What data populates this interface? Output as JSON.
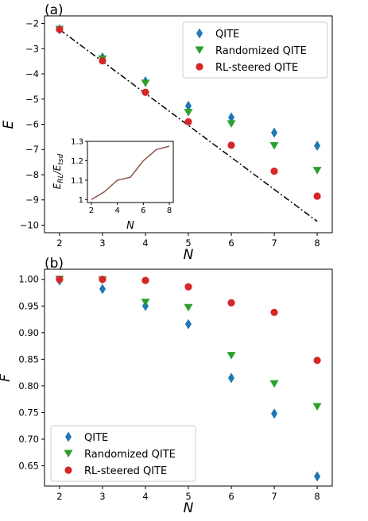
{
  "chart_data": [
    {
      "panel_label": "(a)",
      "type": "scatter",
      "xlabel": "N",
      "ylabel": "E",
      "xlim": [
        1.65,
        8.35
      ],
      "ylim": [
        -10.3,
        -1.7
      ],
      "x_ticks": [
        2,
        3,
        4,
        5,
        6,
        7,
        8
      ],
      "y_ticks": [
        -10,
        -9,
        -8,
        -7,
        -6,
        -5,
        -4,
        -3,
        -2
      ],
      "legend_position": "upper right",
      "series": [
        {
          "name": "QITE",
          "marker": "diamond",
          "color": "#1f77b4",
          "x": [
            2,
            3,
            4,
            5,
            6,
            7,
            8
          ],
          "y": [
            -2.23,
            -3.35,
            -4.3,
            -5.27,
            -5.73,
            -6.33,
            -6.85
          ]
        },
        {
          "name": "Randomized QITE",
          "marker": "triangle-down",
          "color": "#2ca02c",
          "x": [
            2,
            3,
            4,
            5,
            6,
            7,
            8
          ],
          "y": [
            -2.24,
            -3.41,
            -4.37,
            -5.53,
            -5.98,
            -6.85,
            -7.83
          ]
        },
        {
          "name": "RL-steered QITE",
          "marker": "circle",
          "color": "#d62728",
          "x": [
            2,
            3,
            4,
            5,
            6,
            7,
            8
          ],
          "y": [
            -2.24,
            -3.48,
            -4.73,
            -5.9,
            -6.83,
            -7.86,
            -8.85
          ]
        }
      ],
      "reference_line": {
        "style": "dash-dot",
        "color": "#000000",
        "x": [
          2,
          8
        ],
        "y": [
          -2.24,
          -9.85
        ]
      },
      "inset": {
        "type": "line",
        "xlabel": "N",
        "ylabel": "E_RL/E_tsd",
        "xlim": [
          1.7,
          8.3
        ],
        "ylim": [
          0.985,
          1.3
        ],
        "x_ticks": [
          2,
          4,
          6,
          8
        ],
        "y_ticks": [
          1.0,
          1.1,
          1.2,
          1.3
        ],
        "x_tick_labels": [
          "2",
          "4",
          "6",
          "8"
        ],
        "y_tick_labels": [
          "1",
          "1.1",
          "1.2",
          "1.3"
        ],
        "color": "#8c564b",
        "x": [
          2,
          3,
          4,
          5,
          6,
          7,
          8
        ],
        "y": [
          1.0,
          1.04,
          1.1,
          1.115,
          1.2,
          1.258,
          1.275
        ]
      }
    },
    {
      "panel_label": "(b)",
      "type": "scatter",
      "xlabel": "N",
      "ylabel": "F",
      "xlim": [
        1.65,
        8.35
      ],
      "ylim": [
        0.612,
        1.019
      ],
      "x_ticks": [
        2,
        3,
        4,
        5,
        6,
        7,
        8
      ],
      "y_ticks": [
        0.65,
        0.7,
        0.75,
        0.8,
        0.85,
        0.9,
        0.95,
        1.0
      ],
      "y_tick_labels": [
        "0.65",
        "0.70",
        "0.75",
        "0.80",
        "0.85",
        "0.90",
        "0.95",
        "1.00"
      ],
      "legend_position": "lower left",
      "series": [
        {
          "name": "QITE",
          "marker": "diamond",
          "color": "#1f77b4",
          "x": [
            2,
            3,
            4,
            5,
            6,
            7,
            8
          ],
          "y": [
            0.998,
            0.982,
            0.95,
            0.916,
            0.815,
            0.748,
            0.63
          ]
        },
        {
          "name": "Randomized QITE",
          "marker": "triangle-down",
          "color": "#2ca02c",
          "x": [
            2,
            3,
            4,
            5,
            6,
            7,
            8
          ],
          "y": [
            1.0,
            0.999,
            0.957,
            0.947,
            0.857,
            0.804,
            0.761
          ]
        },
        {
          "name": "RL-steered QITE",
          "marker": "circle",
          "color": "#d62728",
          "x": [
            2,
            3,
            4,
            5,
            6,
            7,
            8
          ],
          "y": [
            1.0,
            1.0,
            0.998,
            0.986,
            0.956,
            0.938,
            0.848
          ]
        }
      ]
    }
  ]
}
